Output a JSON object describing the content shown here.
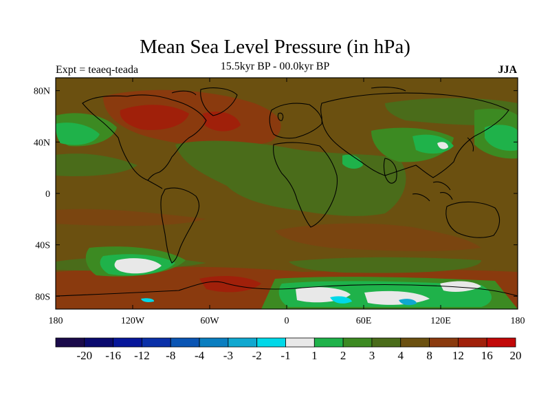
{
  "title": "Mean Sea Level Pressure (in hPa)",
  "subtitle": "15.5kyr BP - 00.0kyr BP",
  "left_label": "Expt = teaeq-teada",
  "right_label": "JJA",
  "map": {
    "lat_ticks": [
      "80N",
      "40N",
      "0",
      "40S",
      "80S"
    ],
    "lon_ticks": [
      "180",
      "120W",
      "60W",
      "0",
      "60E",
      "120E",
      "180"
    ],
    "lat_values": [
      80,
      40,
      0,
      -40,
      -80
    ],
    "lon_values": [
      -180,
      -120,
      -60,
      0,
      60,
      120,
      180
    ]
  },
  "colorbar": {
    "labels": [
      "-20",
      "-16",
      "-12",
      "-8",
      "-4",
      "-3",
      "-2",
      "-1",
      "1",
      "2",
      "3",
      "4",
      "8",
      "12",
      "16",
      "20"
    ],
    "colors": [
      "#1a0a4a",
      "#0a0a6e",
      "#06169a",
      "#0a30a8",
      "#0a55b4",
      "#0a7ec0",
      "#10a8d0",
      "#00d8e8",
      "#e8e8e8",
      "#1fb24a",
      "#3c8a22",
      "#4a6c1a",
      "#6b5010",
      "#8a3a0e",
      "#a0200a",
      "#c20808"
    ]
  }
}
